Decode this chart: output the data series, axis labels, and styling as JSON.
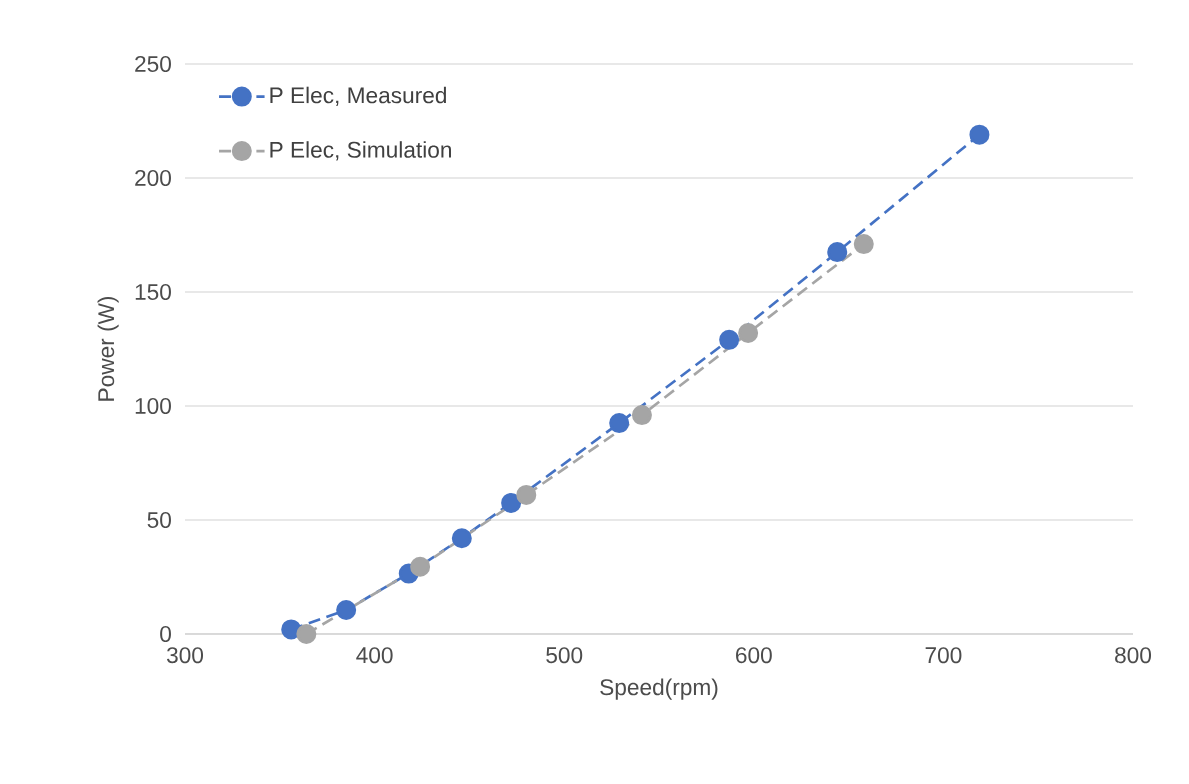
{
  "chart_data": {
    "type": "line",
    "xlabel": "Speed(rpm)",
    "ylabel": "Power (W)",
    "series": [
      {
        "name": "P Elec, Measured",
        "color": "#4472c4",
        "x": [
          356,
          385,
          418,
          446,
          472,
          529,
          587,
          644,
          719
        ],
        "values": [
          2,
          10.5,
          26.5,
          42,
          57.5,
          92.5,
          129,
          167.5,
          219
        ]
      },
      {
        "name": "P Elec, Simulation",
        "color": "#a5a5a5",
        "x": [
          364,
          424,
          480,
          541,
          597,
          658
        ],
        "values": [
          0,
          29.5,
          61,
          96,
          132,
          171
        ]
      }
    ],
    "xlim": [
      300,
      800
    ],
    "xticks": [
      300,
      400,
      500,
      600,
      700,
      800
    ],
    "ylim": [
      0,
      250
    ],
    "yticks": [
      0,
      50,
      100,
      150,
      200,
      250
    ],
    "grid": "y",
    "legend": "top left",
    "marker": "circle",
    "line_style": "dashed"
  }
}
